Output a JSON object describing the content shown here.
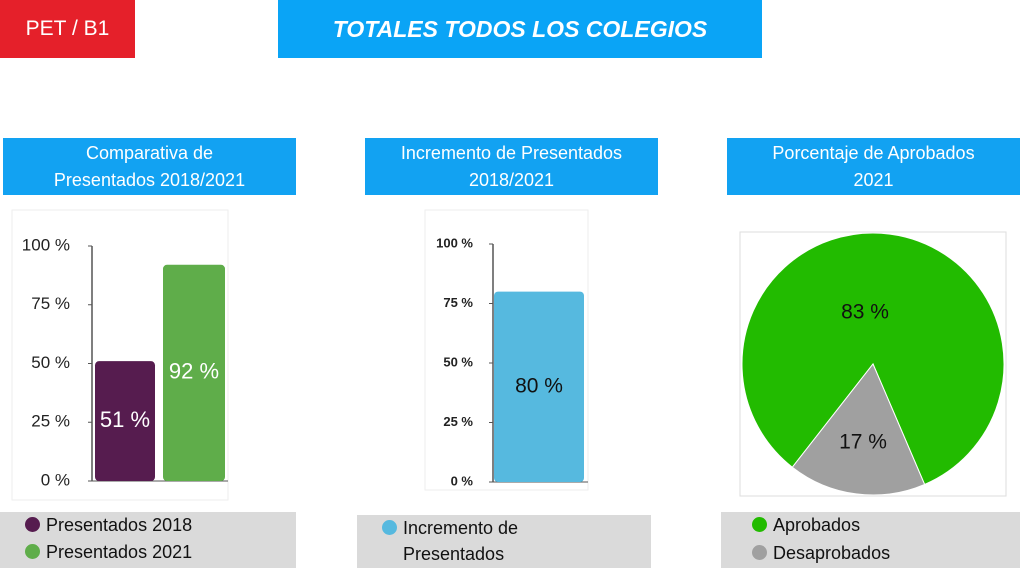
{
  "header": {
    "badge": "PET / B1",
    "title": "TOTALES TODOS LOS COLEGIOS"
  },
  "chart_data": [
    {
      "type": "bar",
      "title": "Comparativa de Presentados 2018/2021",
      "categories": [
        null
      ],
      "series": [
        {
          "name": "Presentados 2018",
          "color": "#561c4f",
          "values": [
            51
          ],
          "value_labels": [
            "51 %"
          ]
        },
        {
          "name": "Presentados 2021",
          "color": "#5fad4a",
          "values": [
            92
          ],
          "value_labels": [
            "92 %"
          ]
        }
      ],
      "ylim": [
        0,
        100
      ],
      "yticks": [
        {
          "value": 0,
          "label": "0 %"
        },
        {
          "value": 25,
          "label": "25 %"
        },
        {
          "value": 50,
          "label": "50 %"
        },
        {
          "value": 75,
          "label": "75 %"
        },
        {
          "value": 100,
          "label": "100 %"
        }
      ]
    },
    {
      "type": "bar",
      "title": "Incremento de Presentados 2018/2021",
      "categories": [
        null
      ],
      "series": [
        {
          "name": "Incremento de Presentados",
          "color": "#56b9df",
          "values": [
            80
          ],
          "value_labels": [
            "80 %"
          ]
        }
      ],
      "ylim": [
        0,
        100
      ],
      "yticks": [
        {
          "value": 0,
          "label": "0 %"
        },
        {
          "value": 25,
          "label": "25 %"
        },
        {
          "value": 50,
          "label": "50 %"
        },
        {
          "value": 75,
          "label": "75 %"
        },
        {
          "value": 100,
          "label": "100 %"
        }
      ]
    },
    {
      "type": "pie",
      "title": "Porcentaje de Aprobados 2021",
      "categories": [
        "Aprobados",
        "Desaprobados"
      ],
      "values": [
        83,
        17
      ],
      "value_labels": [
        "83 %",
        "17 %"
      ],
      "colors": [
        "#22bb00",
        "#a0a0a0"
      ]
    }
  ]
}
